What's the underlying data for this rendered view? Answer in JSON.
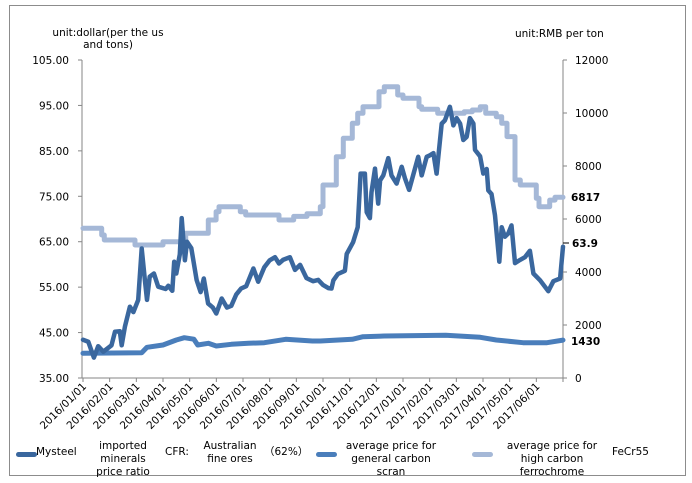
{
  "chart_data": {
    "type": "line",
    "left_axis": {
      "label": "unit:dollar(per the us and tons)",
      "label_lines": [
        "unit:dollar(per the us",
        "and tons)"
      ],
      "range": [
        35,
        105
      ],
      "ticks": [
        "105.00",
        "95.00",
        "85.00",
        "75.00",
        "65.00",
        "55.00",
        "45.00",
        "35.00"
      ],
      "tick_values": [
        105,
        95,
        85,
        75,
        65,
        55,
        45,
        35
      ]
    },
    "right_axis": {
      "label": "unit:RMB per ton",
      "range": [
        0,
        12000
      ],
      "ticks": [
        "12000",
        "10000",
        "8000",
        "6000",
        "4000",
        "2000",
        "0"
      ],
      "tick_values": [
        12000,
        10000,
        8000,
        6000,
        4000,
        2000,
        0
      ]
    },
    "x_axis": {
      "unit": "months since 2016/01/01",
      "range": [
        0,
        18
      ],
      "tick_labels": [
        "2016/01/01",
        "2016/02/01",
        "2016/03/01",
        "2016/04/01",
        "2016/05/01",
        "2016/06/01",
        "2016/07/01",
        "2016/08/01",
        "2016/09/01",
        "2016/10/01",
        "2016/11/01",
        "2016/12/01",
        "2017/01/01",
        "2017/02/01",
        "2017/03/01",
        "2017/04/01",
        "2017/05/01",
        "2017/06/01"
      ]
    },
    "end_labels": {
      "ferrochrome": "6817",
      "iron_ore": "63.9",
      "scrap": "1430"
    },
    "series": [
      {
        "name": "Mysteel imported minerals price ratio CFR: Australian fine ores (62%)",
        "axis": "left",
        "color": "#3a679e",
        "points": [
          [
            0,
            43.4
          ],
          [
            0.2,
            43
          ],
          [
            0.41,
            39.5
          ],
          [
            0.57,
            42
          ],
          [
            0.76,
            40.8
          ],
          [
            1.07,
            42.2
          ],
          [
            1.2,
            45.2
          ],
          [
            1.38,
            45.3
          ],
          [
            1.45,
            42.2
          ],
          [
            1.57,
            46.3
          ],
          [
            1.76,
            50.7
          ],
          [
            1.89,
            49.5
          ],
          [
            2.07,
            52.2
          ],
          [
            2.2,
            63.5
          ],
          [
            2.32,
            56.5
          ],
          [
            2.4,
            52.2
          ],
          [
            2.5,
            57.3
          ],
          [
            2.66,
            58
          ],
          [
            2.82,
            55.1
          ],
          [
            3.1,
            54.6
          ],
          [
            3.2,
            55.3
          ],
          [
            3.35,
            54.2
          ],
          [
            3.42,
            60.6
          ],
          [
            3.5,
            58
          ],
          [
            3.63,
            62.2
          ],
          [
            3.7,
            70.2
          ],
          [
            3.82,
            60.9
          ],
          [
            3.9,
            65
          ],
          [
            4.06,
            63.6
          ],
          [
            4.26,
            56.6
          ],
          [
            4.41,
            53.9
          ],
          [
            4.53,
            56.9
          ],
          [
            4.69,
            51.4
          ],
          [
            4.87,
            50.5
          ],
          [
            5.0,
            49.2
          ],
          [
            5.2,
            52.5
          ],
          [
            5.4,
            50.5
          ],
          [
            5.56,
            50.9
          ],
          [
            5.75,
            53.4
          ],
          [
            5.93,
            54.7
          ],
          [
            6.12,
            55.2
          ],
          [
            6.39,
            59.1
          ],
          [
            6.57,
            56.2
          ],
          [
            6.8,
            59.4
          ],
          [
            7.0,
            60.9
          ],
          [
            7.2,
            61.6
          ],
          [
            7.35,
            60.2
          ],
          [
            7.5,
            61
          ],
          [
            7.76,
            61.6
          ],
          [
            7.95,
            58.8
          ],
          [
            8.14,
            59.9
          ],
          [
            8.38,
            57
          ],
          [
            8.63,
            56.3
          ],
          [
            8.82,
            56.6
          ],
          [
            9.0,
            55.5
          ],
          [
            9.2,
            54.8
          ],
          [
            9.32,
            54.7
          ],
          [
            9.39,
            56.5
          ],
          [
            9.56,
            57.9
          ],
          [
            9.82,
            58.6
          ],
          [
            9.89,
            62.3
          ],
          [
            10.13,
            64.9
          ],
          [
            10.3,
            68.2
          ],
          [
            10.41,
            80
          ],
          [
            10.57,
            80
          ],
          [
            10.64,
            71.5
          ],
          [
            10.76,
            70.2
          ],
          [
            10.82,
            75.9
          ],
          [
            10.95,
            81.1
          ],
          [
            11.07,
            73.4
          ],
          [
            11.14,
            78.5
          ],
          [
            11.26,
            79.6
          ],
          [
            11.45,
            83.4
          ],
          [
            11.57,
            79.6
          ],
          [
            11.76,
            77.8
          ],
          [
            11.95,
            81.5
          ],
          [
            12.07,
            79
          ],
          [
            12.23,
            76.4
          ],
          [
            12.38,
            79.6
          ],
          [
            12.57,
            83.7
          ],
          [
            12.7,
            79.6
          ],
          [
            12.89,
            83.7
          ],
          [
            13.0,
            84
          ],
          [
            13.14,
            84.5
          ],
          [
            13.26,
            80
          ],
          [
            13.45,
            91
          ],
          [
            13.57,
            91.7
          ],
          [
            13.76,
            94.7
          ],
          [
            13.89,
            90.6
          ],
          [
            14.01,
            92.2
          ],
          [
            14.14,
            91
          ],
          [
            14.26,
            87.4
          ],
          [
            14.39,
            88.1
          ],
          [
            14.51,
            92.2
          ],
          [
            14.64,
            91
          ],
          [
            14.7,
            85.2
          ],
          [
            14.89,
            83.8
          ],
          [
            15.01,
            80
          ],
          [
            15.14,
            81
          ],
          [
            15.2,
            76.3
          ],
          [
            15.32,
            75.5
          ],
          [
            15.45,
            70.8
          ],
          [
            15.61,
            60.6
          ],
          [
            15.7,
            68.2
          ],
          [
            15.82,
            66.1
          ],
          [
            15.95,
            66.8
          ],
          [
            16.07,
            68.6
          ],
          [
            16.2,
            60.3
          ],
          [
            16.39,
            61
          ],
          [
            16.57,
            61.6
          ],
          [
            16.76,
            63
          ],
          [
            16.89,
            58
          ],
          [
            17.14,
            56.5
          ],
          [
            17.45,
            54.1
          ],
          [
            17.64,
            56.3
          ],
          [
            17.89,
            56.9
          ],
          [
            18.0,
            63.9
          ]
        ]
      },
      {
        "name": "average price for general carbon scran",
        "axis": "right",
        "color": "#4a7ebb",
        "points": [
          [
            0,
            932
          ],
          [
            2.2,
            953
          ],
          [
            2.4,
            1157
          ],
          [
            3.0,
            1245
          ],
          [
            3.5,
            1434
          ],
          [
            3.8,
            1520
          ],
          [
            4.16,
            1466
          ],
          [
            4.3,
            1245
          ],
          [
            4.7,
            1308
          ],
          [
            5.0,
            1208
          ],
          [
            5.56,
            1270
          ],
          [
            6.2,
            1308
          ],
          [
            6.8,
            1333
          ],
          [
            7.6,
            1459
          ],
          [
            8.6,
            1396
          ],
          [
            8.9,
            1396
          ],
          [
            10.1,
            1459
          ],
          [
            10.5,
            1560
          ],
          [
            11.3,
            1585
          ],
          [
            13.6,
            1610
          ],
          [
            14.9,
            1535
          ],
          [
            15.5,
            1434
          ],
          [
            16.5,
            1333
          ],
          [
            17.4,
            1333
          ],
          [
            18.0,
            1430
          ]
        ]
      },
      {
        "name": "average price for high carbon ferrochrome FeCr55",
        "axis": "right",
        "color": "#a5b8d7",
        "step": true,
        "points": [
          [
            0,
            5649
          ],
          [
            0.7,
            5396
          ],
          [
            0.8,
            5208
          ],
          [
            1.95,
            5019
          ],
          [
            3.0,
            5145
          ],
          [
            3.85,
            5460
          ],
          [
            4.7,
            5962
          ],
          [
            4.99,
            6275
          ],
          [
            5.1,
            6464
          ],
          [
            5.9,
            6275
          ],
          [
            6.1,
            6151
          ],
          [
            7.35,
            5962
          ],
          [
            7.9,
            6100
          ],
          [
            8.4,
            6200
          ],
          [
            8.9,
            6464
          ],
          [
            9.0,
            7283
          ],
          [
            9.5,
            8351
          ],
          [
            9.76,
            9045
          ],
          [
            10.1,
            9611
          ],
          [
            10.3,
            9988
          ],
          [
            10.5,
            10238
          ],
          [
            11.1,
            10804
          ],
          [
            11.3,
            10993
          ],
          [
            11.8,
            10679
          ],
          [
            12.0,
            10553
          ],
          [
            12.6,
            10238
          ],
          [
            12.7,
            10138
          ],
          [
            13.3,
            9988
          ],
          [
            14.3,
            10050
          ],
          [
            14.6,
            10113
          ],
          [
            14.9,
            10238
          ],
          [
            15.1,
            9988
          ],
          [
            15.5,
            9862
          ],
          [
            15.7,
            9611
          ],
          [
            15.9,
            9108
          ],
          [
            16.2,
            7472
          ],
          [
            16.4,
            7283
          ],
          [
            17.0,
            6782
          ],
          [
            17.1,
            6464
          ],
          [
            17.5,
            6715
          ],
          [
            17.7,
            6817
          ],
          [
            18.0,
            6817
          ]
        ]
      }
    ],
    "legend": {
      "placement": "bottom",
      "items": [
        {
          "text1": "Mysteel",
          "text2": "imported minerals price ratio",
          "text3": "CFR:",
          "text4": "Australian fine ores",
          "text5": "（62%）"
        },
        {
          "text1": "average price for general carbon scran"
        },
        {
          "text1": "average price for high carbon ferrochrome",
          "text2": "FeCr55"
        }
      ]
    }
  }
}
